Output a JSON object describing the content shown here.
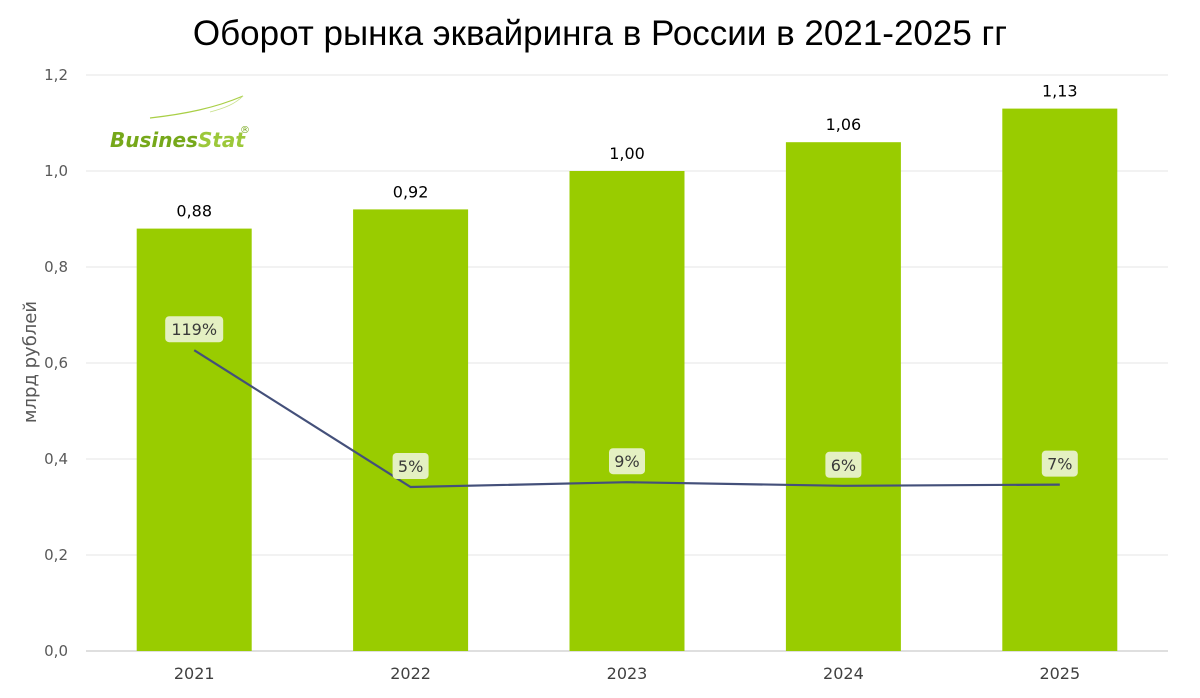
{
  "chart_data": {
    "type": "bar",
    "title": "Оборот рынка эквайринга в России в 2021-2025 гг",
    "ylabel": "млрд рублей",
    "xlabel": "",
    "ylim": [
      0,
      1.2
    ],
    "yticks": [
      "0,0",
      "0,2",
      "0,4",
      "0,6",
      "0,8",
      "1,0",
      "1,2"
    ],
    "grid": true,
    "categories": [
      "2021",
      "2022",
      "2023",
      "2024",
      "2025"
    ],
    "values": [
      0.88,
      0.92,
      1.0,
      1.06,
      1.13
    ],
    "value_labels": [
      "0,88",
      "0,92",
      "1,00",
      "1,06",
      "1,13"
    ],
    "growth": {
      "type": "line",
      "values": [
        119,
        5,
        9,
        6,
        7
      ],
      "labels": [
        "119%",
        "5%",
        "9%",
        "6%",
        "7%"
      ]
    },
    "colors": {
      "bar": "#99cc00",
      "line": "#44507a",
      "label_box": "#e4f0c2",
      "grid": "#e6e6e6"
    }
  },
  "logo": {
    "text_part1": "Busines",
    "text_part2": "Stat",
    "mark": "®"
  }
}
